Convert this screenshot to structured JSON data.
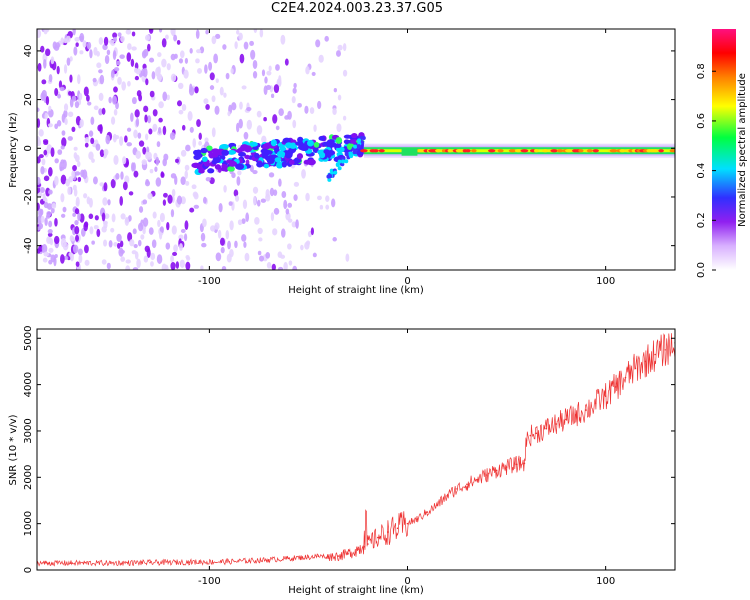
{
  "title": "C2E4.2024.003.23.37.G05",
  "chart_data": [
    {
      "type": "heatmap",
      "xlabel": "Height of straight line (km)",
      "ylabel": "Frequency (Hz)",
      "xlim": [
        -187,
        135
      ],
      "ylim": [
        -50,
        49
      ],
      "xticks": [
        -100,
        0,
        100
      ],
      "yticks": [
        -40,
        -20,
        0,
        20,
        40
      ],
      "grid": false,
      "colorbar": {
        "label": "Normalized spectral amplitude",
        "range": [
          0,
          0.97
        ],
        "ticks": [
          0.0,
          0.2,
          0.4,
          0.6,
          0.8
        ],
        "colormap": [
          "#ffffff",
          "#a020f0",
          "#3030ff",
          "#00e0ff",
          "#00ff40",
          "#ffff00",
          "#ff8000",
          "#ff0000",
          "#ff1080"
        ]
      },
      "regions": [
        {
          "name": "noise",
          "x_range": [
            -187,
            -30
          ],
          "frequency_range": [
            -50,
            49
          ],
          "amplitude": 0.2
        },
        {
          "name": "signal-scattered",
          "x_range": [
            -107,
            -22
          ],
          "frequency_range": [
            -15,
            5
          ],
          "amplitude": 0.5
        },
        {
          "name": "signal-line",
          "x_range": [
            -22,
            135
          ],
          "frequency": -1,
          "amplitude": 0.9
        }
      ]
    },
    {
      "type": "line",
      "xlabel": "Height of straight line (km)",
      "ylabel": "SNR (10 * v/v)",
      "xlim": [
        -187,
        135
      ],
      "ylim": [
        0,
        5200
      ],
      "xticks": [
        -100,
        0,
        100
      ],
      "yticks": [
        0,
        1000,
        2000,
        3000,
        4000,
        5000
      ],
      "grid": false,
      "series": [
        {
          "color": "#ee3333",
          "x": [
            -187,
            -170,
            -150,
            -130,
            -110,
            -90,
            -80,
            -70,
            -60,
            -50,
            -45,
            -40,
            -35,
            -30,
            -25,
            -22,
            -20,
            -15,
            -10,
            -5,
            0,
            5,
            10,
            15,
            20,
            25,
            30,
            35,
            40,
            45,
            50,
            55,
            59,
            60,
            62,
            65,
            70,
            75,
            80,
            85,
            90,
            95,
            100,
            105,
            110,
            115,
            120,
            125,
            130,
            135
          ],
          "y": [
            150,
            150,
            150,
            160,
            170,
            180,
            200,
            220,
            250,
            280,
            300,
            290,
            300,
            350,
            450,
            500,
            560,
            700,
            820,
            900,
            1000,
            1100,
            1250,
            1400,
            1600,
            1750,
            1850,
            1950,
            2050,
            2150,
            2220,
            2280,
            2300,
            2800,
            2900,
            2950,
            3050,
            3150,
            3250,
            3350,
            3450,
            3600,
            3750,
            3950,
            4150,
            4350,
            4500,
            4650,
            4750,
            4900
          ]
        }
      ]
    }
  ]
}
